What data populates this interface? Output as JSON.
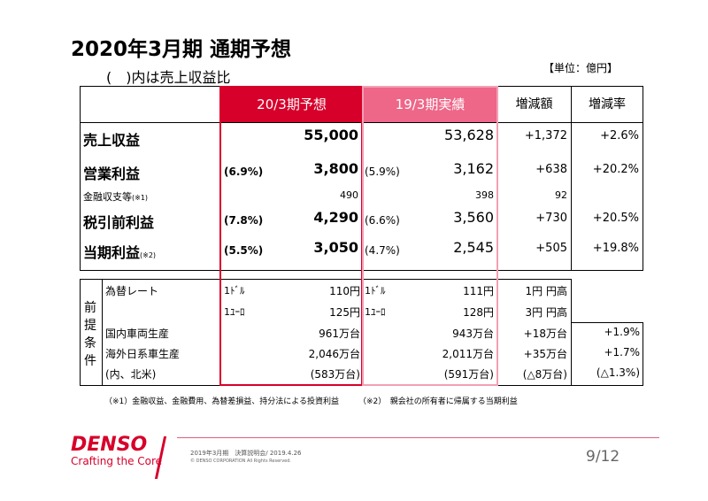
{
  "title": "2020年3月期 通期予想",
  "subtitle": "(　)内は売上収益比",
  "unit": "【単位：億円】",
  "table1": {
    "headers": [
      "20/3期予想",
      "19/3期実績",
      "増減額",
      "増減率"
    ],
    "rows": [
      {
        "label": "売上収益",
        "note": "",
        "fc_ratio": "",
        "fc": "55,000",
        "act_ratio": "",
        "act": "53,628",
        "diff": "+1,372",
        "rate": "+2.6%"
      },
      {
        "label": "営業利益",
        "note": "",
        "fc_ratio": "(6.9%)",
        "fc": "3,800",
        "act_ratio": "(5.9%)",
        "act": "3,162",
        "diff": "+638",
        "rate": "+20.2%"
      },
      {
        "label": "金融収支等",
        "note": "(※1)",
        "fc_ratio": "",
        "fc": "490",
        "act_ratio": "",
        "act": "398",
        "diff": "92",
        "rate": ""
      },
      {
        "label": "税引前利益",
        "note": "",
        "fc_ratio": "(7.8%)",
        "fc": "4,290",
        "act_ratio": "(6.6%)",
        "act": "3,560",
        "diff": "+730",
        "rate": "+20.5%"
      },
      {
        "label": "当期利益",
        "note": "(※2)",
        "fc_ratio": "(5.5%)",
        "fc": "3,050",
        "act_ratio": "(4.7%)",
        "act": "2,545",
        "diff": "+505",
        "rate": "+19.8%"
      }
    ]
  },
  "table2": {
    "side_label": "前提条件",
    "rows": [
      {
        "label": "為替レート",
        "fc_cur": "1ﾄﾞﾙ",
        "fc": "110円",
        "act_cur": "1ﾄﾞﾙ",
        "act": "111円",
        "diff": "1円 円高",
        "rate": ""
      },
      {
        "label": "",
        "fc_cur": "1ﾕｰﾛ",
        "fc": "125円",
        "act_cur": "1ﾕｰﾛ",
        "act": "128円",
        "diff": "3円 円高",
        "rate": ""
      },
      {
        "label": "国内車両生産",
        "fc_cur": "",
        "fc": "961万台",
        "act_cur": "",
        "act": "943万台",
        "diff": "+18万台",
        "rate": "+1.9%"
      },
      {
        "label": "海外日系車生産",
        "fc_cur": "",
        "fc": "2,046万台",
        "act_cur": "",
        "act": "2,011万台",
        "diff": "+35万台",
        "rate": "+1.7%"
      },
      {
        "label": "(内、北米)",
        "fc_cur": "",
        "fc": "(583万台)",
        "act_cur": "",
        "act": "(591万台)",
        "diff": "(△8万台)",
        "rate": "(△1.3%)"
      }
    ]
  },
  "footnotes": [
    "（※1）金融収益、金融費用、為替差損益、持分法による投資利益",
    "（※2）　親会社の所有者に帰属する当期利益"
  ],
  "footer": {
    "brand": "DENSO",
    "tagline": "Crafting the Core",
    "event": "2019年3月期　決算説明会/ 2019.4.26",
    "copyright": "© DENSO CORPORATION All Rights Reserved.",
    "page": "9/12"
  },
  "colors": {
    "brand_red": "#d7002a",
    "forecast_header": "#d7002a",
    "actual_header": "#ee6688"
  }
}
